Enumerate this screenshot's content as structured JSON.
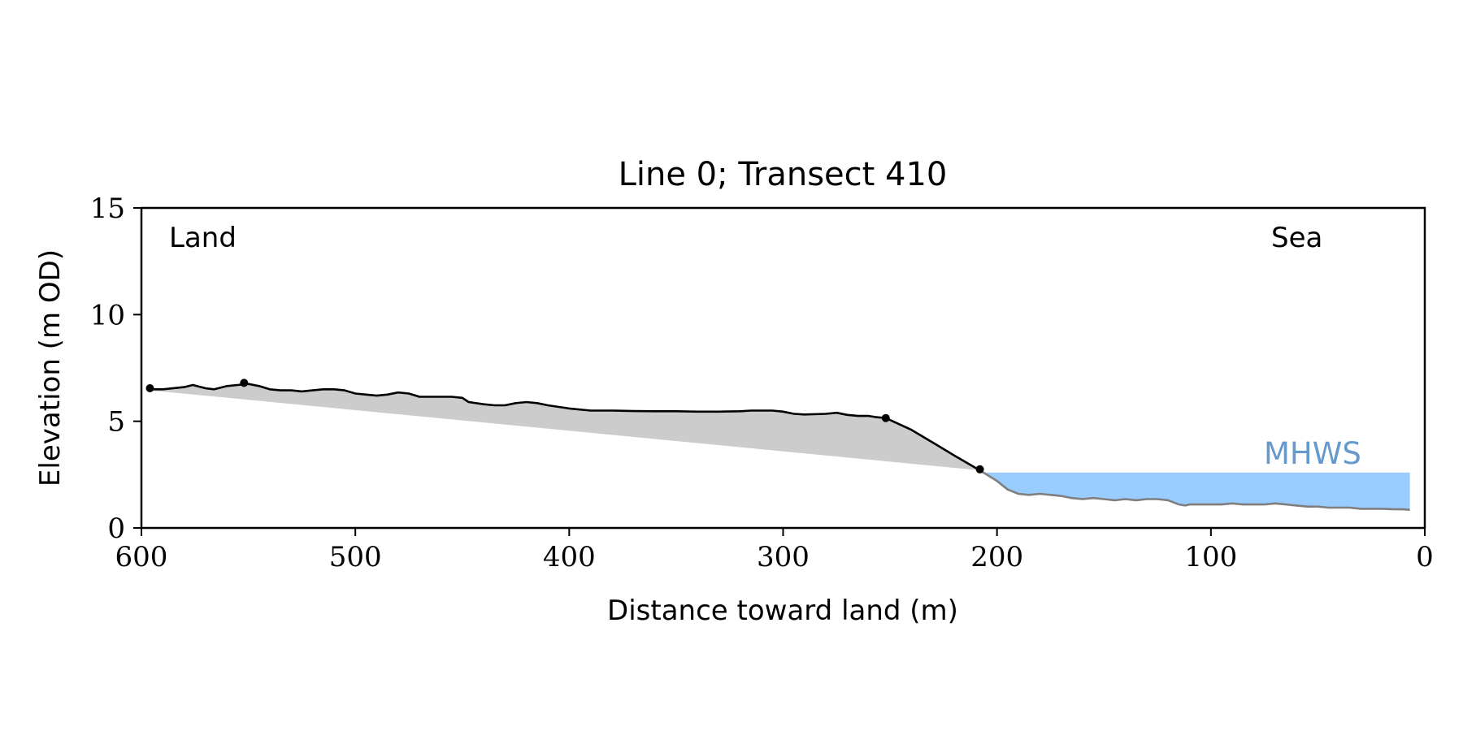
{
  "chart_data": {
    "type": "line",
    "title": "Line 0; Transect 410",
    "xlabel": "Distance toward land (m)",
    "ylabel": "Elevation (m OD)",
    "xlim": [
      600,
      0
    ],
    "ylim": [
      0,
      15
    ],
    "x_ticks": [
      "600",
      "500",
      "400",
      "300",
      "200",
      "100",
      "0"
    ],
    "y_ticks": [
      "0",
      "5",
      "10",
      "15"
    ],
    "grid": false,
    "annotations": {
      "land": "Land",
      "sea": "Sea",
      "mhws": "MHWS"
    },
    "mhws_level": 2.6,
    "mhws_x_range": [
      208,
      7
    ],
    "colors": {
      "profile": "#000000",
      "seaward_profile": "#7f7f7f",
      "fill": "#cccccc",
      "water": "#99ccff",
      "mhws_text": "#6699cc"
    },
    "series": [
      {
        "x": [
          596,
          590,
          580,
          576,
          570,
          566,
          560,
          555,
          550,
          545,
          540,
          535,
          530,
          525,
          520,
          515,
          510,
          505,
          500,
          495,
          490,
          485,
          480,
          475,
          470,
          465,
          460,
          455,
          450,
          447,
          440,
          435,
          430,
          425,
          420,
          415,
          410,
          400,
          390,
          380,
          370,
          360,
          350,
          340,
          330,
          320,
          315,
          305,
          300,
          295,
          290,
          280,
          275,
          270,
          265,
          260,
          257,
          252
        ],
        "y": [
          6.5,
          6.5,
          6.6,
          6.7,
          6.55,
          6.5,
          6.65,
          6.7,
          6.75,
          6.65,
          6.5,
          6.45,
          6.45,
          6.4,
          6.45,
          6.5,
          6.5,
          6.45,
          6.3,
          6.25,
          6.2,
          6.25,
          6.35,
          6.3,
          6.15,
          6.15,
          6.15,
          6.15,
          6.1,
          5.9,
          5.8,
          5.75,
          5.75,
          5.85,
          5.9,
          5.85,
          5.75,
          5.6,
          5.5,
          5.5,
          5.48,
          5.47,
          5.47,
          5.45,
          5.45,
          5.47,
          5.5,
          5.5,
          5.45,
          5.35,
          5.32,
          5.35,
          5.4,
          5.3,
          5.25,
          5.25,
          5.2,
          5.15
        ]
      },
      {
        "x": [
          252,
          240,
          230,
          220,
          208
        ],
        "y": [
          5.15,
          4.6,
          4.0,
          3.4,
          2.7
        ]
      },
      {
        "x": [
          208,
          200,
          195,
          190,
          185,
          180,
          175,
          170,
          165,
          160,
          155,
          150,
          145,
          140,
          135,
          130,
          125,
          120,
          115,
          112,
          110,
          105,
          100,
          95,
          90,
          85,
          80,
          75,
          70,
          65,
          60,
          55,
          50,
          45,
          40,
          35,
          30,
          25,
          20,
          15,
          10,
          7
        ],
        "y": [
          2.7,
          2.2,
          1.8,
          1.6,
          1.55,
          1.6,
          1.55,
          1.5,
          1.4,
          1.35,
          1.4,
          1.35,
          1.3,
          1.35,
          1.3,
          1.35,
          1.35,
          1.3,
          1.1,
          1.05,
          1.1,
          1.1,
          1.1,
          1.1,
          1.15,
          1.1,
          1.1,
          1.1,
          1.15,
          1.1,
          1.05,
          1.0,
          1.0,
          0.95,
          0.95,
          0.95,
          0.9,
          0.9,
          0.9,
          0.88,
          0.87,
          0.85
        ]
      }
    ],
    "markers": [
      {
        "x": 596,
        "y": 6.55
      },
      {
        "x": 552,
        "y": 6.8
      },
      {
        "x": 252,
        "y": 5.15
      },
      {
        "x": 208,
        "y": 2.75
      }
    ]
  }
}
